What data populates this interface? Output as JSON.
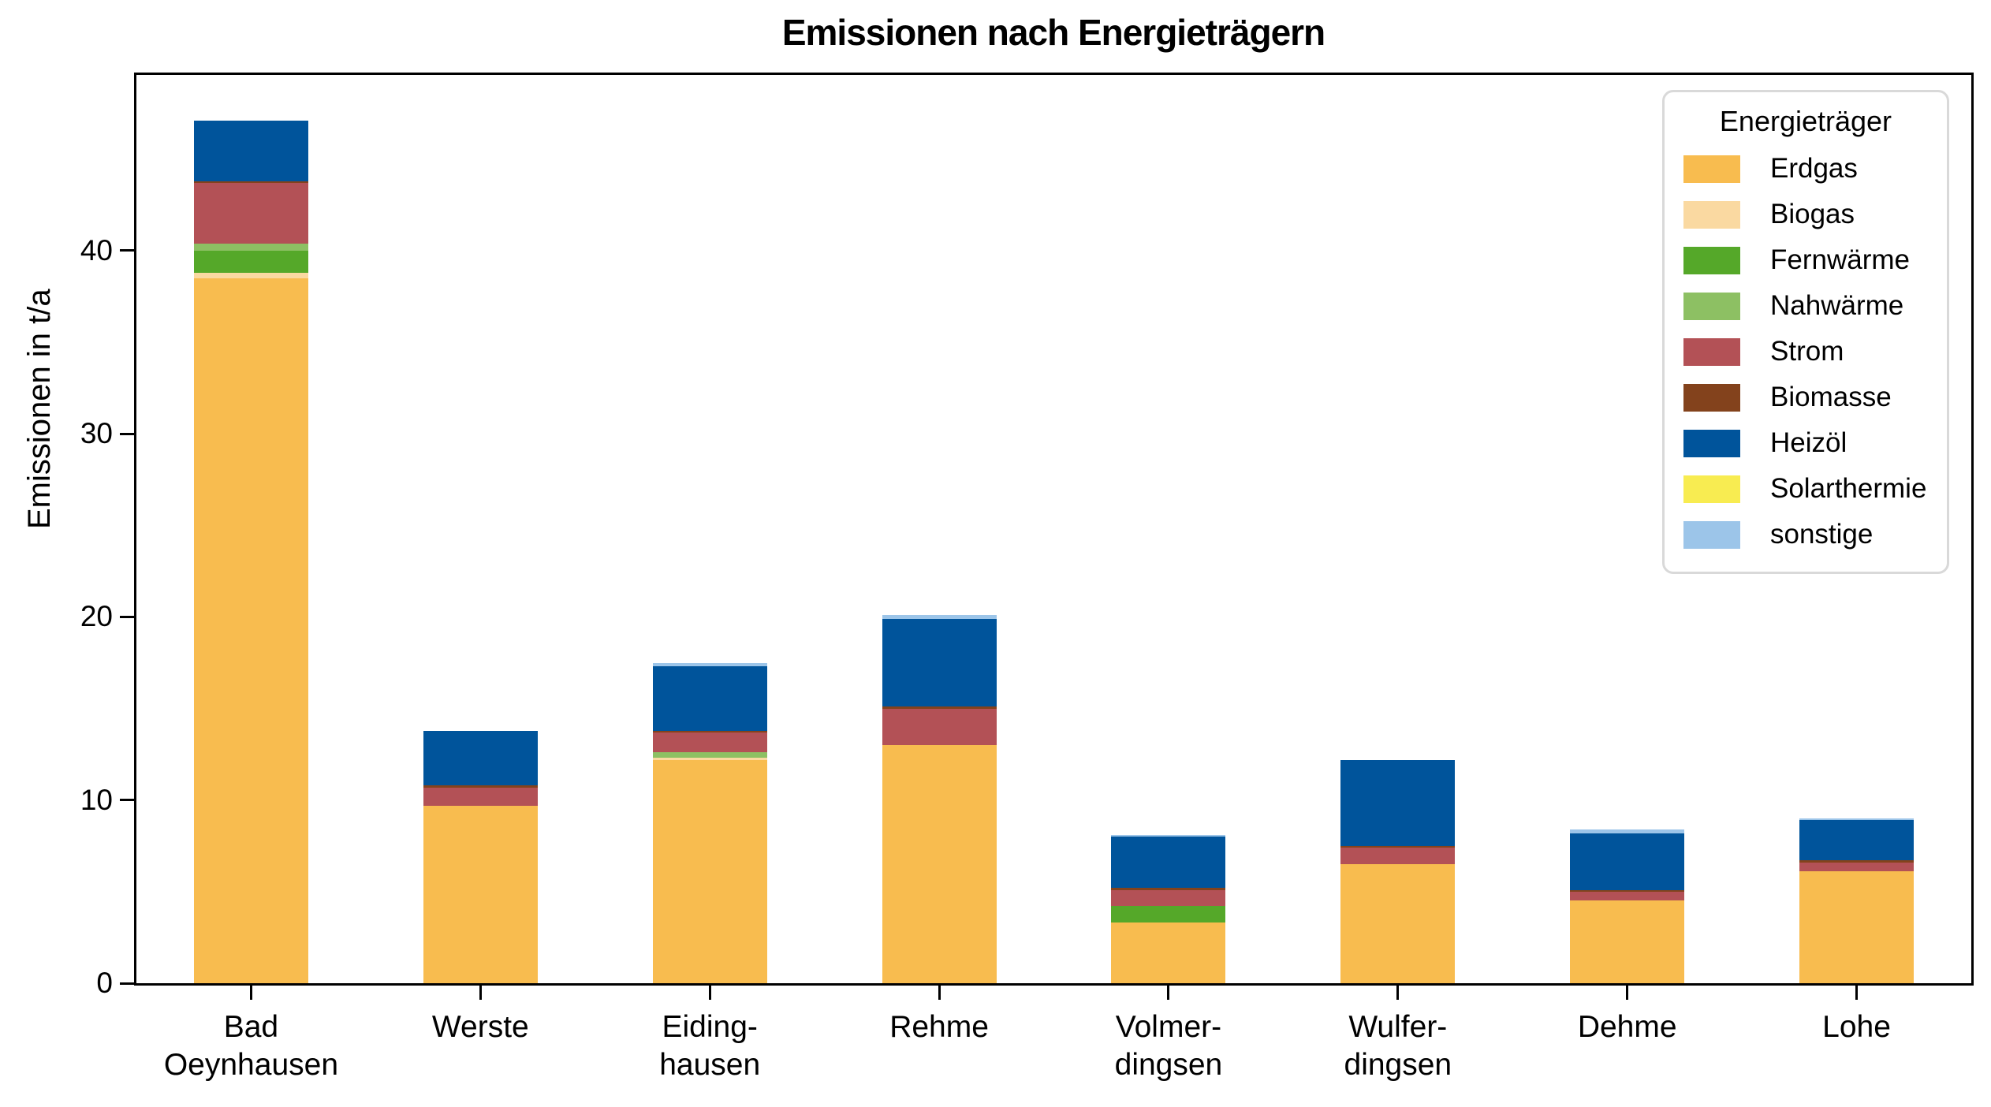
{
  "chart_data": {
    "type": "bar",
    "stacked": true,
    "title": "Emissionen nach Energieträgern",
    "ylabel": "Emissionen in t/a",
    "xlabel": "",
    "ylim": [
      0,
      49.6
    ],
    "yticks": [
      0,
      10,
      20,
      30,
      40
    ],
    "grid": false,
    "legend_title": "Energieträger",
    "legend_position": "upper right",
    "categories": [
      [
        "Bad",
        "Oeynhausen"
      ],
      [
        "Werste"
      ],
      [
        "Eiding-",
        "hausen"
      ],
      [
        "Rehme"
      ],
      [
        "Volmer-",
        "dingsen"
      ],
      [
        "Wulfer-",
        "dingsen"
      ],
      [
        "Dehme"
      ],
      [
        "Lohe"
      ]
    ],
    "series": [
      {
        "name": "Erdgas",
        "color": "#F8BC4F",
        "values": [
          38.5,
          9.7,
          12.2,
          13.0,
          3.3,
          6.5,
          4.5,
          6.1
        ]
      },
      {
        "name": "Biogas",
        "color": "#FAD9A1",
        "values": [
          0.3,
          0,
          0.1,
          0,
          0,
          0,
          0,
          0
        ]
      },
      {
        "name": "Fernwärme",
        "color": "#55A829",
        "values": [
          1.2,
          0,
          0,
          0,
          0.9,
          0,
          0,
          0
        ]
      },
      {
        "name": "Nahwärme",
        "color": "#8DC063",
        "values": [
          0.4,
          0,
          0.3,
          0,
          0,
          0,
          0,
          0
        ]
      },
      {
        "name": "Strom",
        "color": "#B35156",
        "values": [
          3.3,
          1.0,
          1.1,
          2.0,
          0.9,
          0.9,
          0.5,
          0.5
        ]
      },
      {
        "name": "Biomasse",
        "color": "#83421C",
        "values": [
          0.1,
          0.1,
          0.1,
          0.1,
          0.1,
          0.1,
          0.1,
          0.1
        ]
      },
      {
        "name": "Heizöl",
        "color": "#00549B",
        "values": [
          3.3,
          3.0,
          3.5,
          4.8,
          2.8,
          4.7,
          3.1,
          2.2
        ]
      },
      {
        "name": "Solarthermie",
        "color": "#F8EC51",
        "values": [
          0,
          0,
          0,
          0,
          0,
          0,
          0,
          0
        ]
      },
      {
        "name": "sonstige",
        "color": "#9CC5E9",
        "values": [
          0,
          0,
          0.2,
          0.2,
          0.1,
          0,
          0.2,
          0.1
        ]
      }
    ],
    "totals": [
      47.1,
      13.8,
      17.5,
      20.1,
      8.1,
      12.2,
      8.4,
      9.0
    ]
  }
}
